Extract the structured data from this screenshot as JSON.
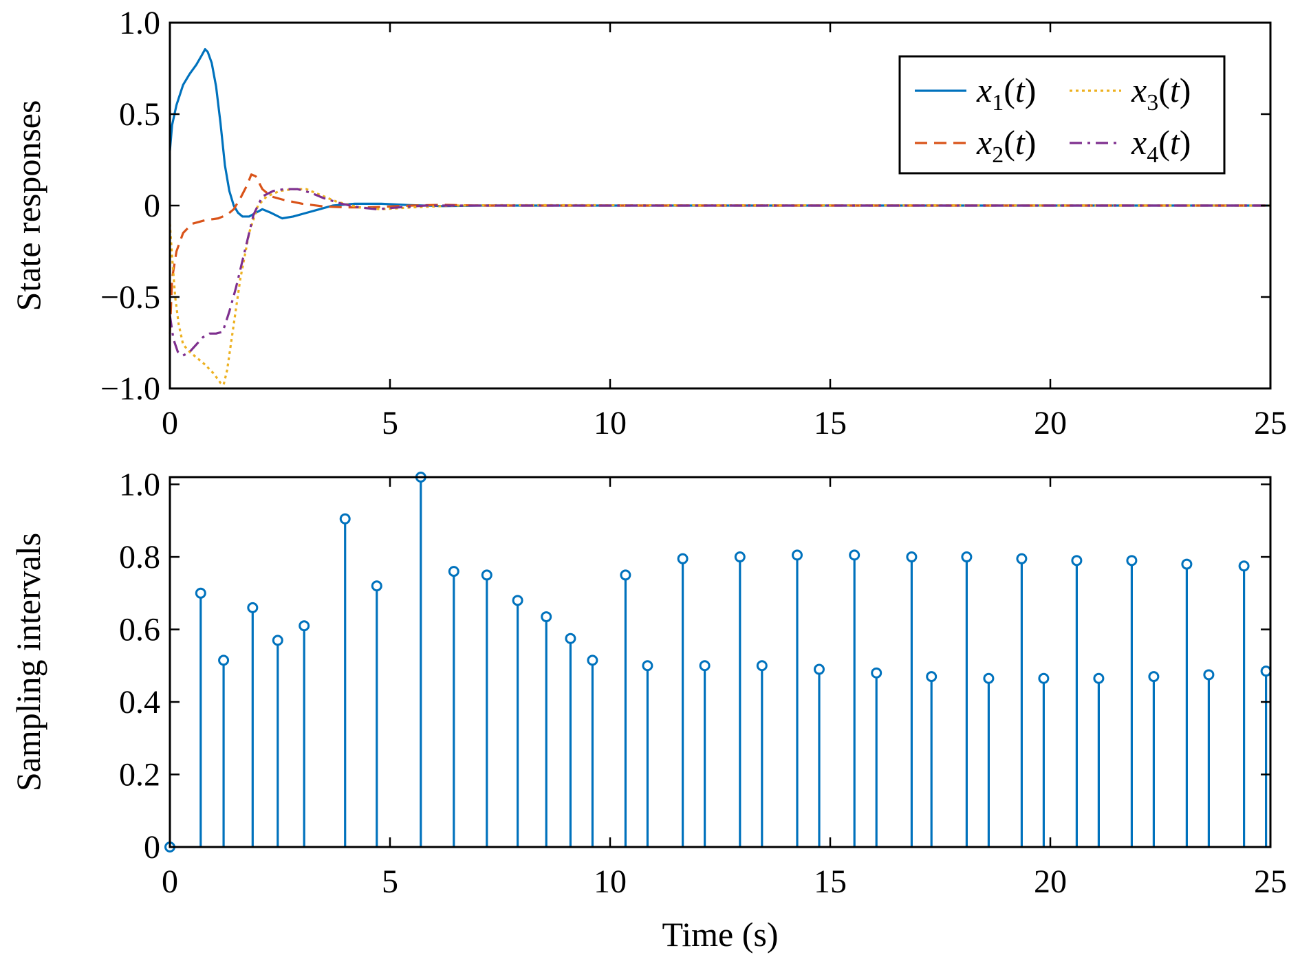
{
  "chart_data": [
    {
      "type": "line",
      "ylabel": "State responses",
      "xlabel": "",
      "xlim": [
        0,
        25
      ],
      "ylim": [
        -1.0,
        1.0
      ],
      "xticks": [
        0,
        5,
        10,
        15,
        20,
        25
      ],
      "yticks": [
        -1.0,
        -0.5,
        0,
        0.5,
        1.0
      ],
      "xtick_labels": [
        "0",
        "5",
        "10",
        "15",
        "20",
        "25"
      ],
      "ytick_labels": [
        "−1.0",
        "−0.5",
        "0",
        "0.5",
        "1.0"
      ],
      "legend_position": "top-right",
      "grid": false,
      "series": [
        {
          "name": "x1(t)",
          "var": "x",
          "sub": "1",
          "arg": "t",
          "color": "#0072BD",
          "dash": "solid",
          "points": [
            [
              0,
              0.3
            ],
            [
              0.05,
              0.44
            ],
            [
              0.15,
              0.55
            ],
            [
              0.3,
              0.66
            ],
            [
              0.45,
              0.72
            ],
            [
              0.6,
              0.77
            ],
            [
              0.72,
              0.82
            ],
            [
              0.8,
              0.855
            ],
            [
              0.86,
              0.84
            ],
            [
              0.95,
              0.78
            ],
            [
              1.05,
              0.65
            ],
            [
              1.15,
              0.45
            ],
            [
              1.25,
              0.22
            ],
            [
              1.35,
              0.08
            ],
            [
              1.45,
              0.0
            ],
            [
              1.55,
              -0.04
            ],
            [
              1.65,
              -0.06
            ],
            [
              1.8,
              -0.06
            ],
            [
              1.95,
              -0.04
            ],
            [
              2.1,
              -0.02
            ],
            [
              2.3,
              -0.04
            ],
            [
              2.55,
              -0.07
            ],
            [
              2.8,
              -0.06
            ],
            [
              3.1,
              -0.04
            ],
            [
              3.4,
              -0.02
            ],
            [
              3.7,
              0.0
            ],
            [
              4.2,
              0.01
            ],
            [
              4.8,
              0.01
            ],
            [
              5.4,
              0.003
            ],
            [
              6.2,
              -0.003
            ],
            [
              7,
              0
            ],
            [
              25,
              0
            ]
          ]
        },
        {
          "name": "x2(t)",
          "var": "x",
          "sub": "2",
          "arg": "t",
          "color": "#D95319",
          "dash": "dashed",
          "points": [
            [
              0,
              -0.7
            ],
            [
              0.05,
              -0.4
            ],
            [
              0.15,
              -0.25
            ],
            [
              0.3,
              -0.15
            ],
            [
              0.5,
              -0.1
            ],
            [
              0.8,
              -0.08
            ],
            [
              1.1,
              -0.07
            ],
            [
              1.3,
              -0.05
            ],
            [
              1.45,
              -0.02
            ],
            [
              1.6,
              0.04
            ],
            [
              1.75,
              0.11
            ],
            [
              1.85,
              0.17
            ],
            [
              1.95,
              0.16
            ],
            [
              2.1,
              0.09
            ],
            [
              2.3,
              0.05
            ],
            [
              2.6,
              0.03
            ],
            [
              3.0,
              0.01
            ],
            [
              3.5,
              -0.005
            ],
            [
              4.0,
              -0.01
            ],
            [
              4.5,
              -0.01
            ],
            [
              5.0,
              -0.005
            ],
            [
              5.5,
              0.0
            ],
            [
              6.2,
              0.004
            ],
            [
              7.0,
              0.0
            ],
            [
              25,
              0
            ]
          ]
        },
        {
          "name": "x3(t)",
          "var": "x",
          "sub": "3",
          "arg": "t",
          "color": "#EDB120",
          "dash": "dotted",
          "points": [
            [
              0,
              -0.1
            ],
            [
              0.05,
              -0.28
            ],
            [
              0.12,
              -0.5
            ],
            [
              0.2,
              -0.65
            ],
            [
              0.3,
              -0.76
            ],
            [
              0.45,
              -0.8
            ],
            [
              0.6,
              -0.83
            ],
            [
              0.8,
              -0.87
            ],
            [
              1.0,
              -0.92
            ],
            [
              1.15,
              -0.97
            ],
            [
              1.22,
              -0.98
            ],
            [
              1.3,
              -0.9
            ],
            [
              1.45,
              -0.65
            ],
            [
              1.6,
              -0.4
            ],
            [
              1.8,
              -0.15
            ],
            [
              2.0,
              0.0
            ],
            [
              2.2,
              0.05
            ],
            [
              2.5,
              0.08
            ],
            [
              2.8,
              0.09
            ],
            [
              3.1,
              0.09
            ],
            [
              3.4,
              0.06
            ],
            [
              3.8,
              0.02
            ],
            [
              4.3,
              -0.01
            ],
            [
              4.8,
              -0.02
            ],
            [
              5.5,
              -0.01
            ],
            [
              6.5,
              0.0
            ],
            [
              7.5,
              0.002
            ],
            [
              25,
              0
            ]
          ]
        },
        {
          "name": "x4(t)",
          "var": "x",
          "sub": "4",
          "arg": "t",
          "color": "#7E2F8E",
          "dash": "dashdot",
          "points": [
            [
              0,
              -0.6
            ],
            [
              0.08,
              -0.73
            ],
            [
              0.18,
              -0.8
            ],
            [
              0.3,
              -0.82
            ],
            [
              0.45,
              -0.8
            ],
            [
              0.6,
              -0.76
            ],
            [
              0.75,
              -0.72
            ],
            [
              0.9,
              -0.7
            ],
            [
              1.05,
              -0.7
            ],
            [
              1.2,
              -0.69
            ],
            [
              1.35,
              -0.58
            ],
            [
              1.5,
              -0.45
            ],
            [
              1.7,
              -0.25
            ],
            [
              1.9,
              -0.05
            ],
            [
              2.1,
              0.05
            ],
            [
              2.35,
              0.08
            ],
            [
              2.6,
              0.09
            ],
            [
              2.9,
              0.09
            ],
            [
              3.2,
              0.07
            ],
            [
              3.5,
              0.04
            ],
            [
              3.9,
              0.01
            ],
            [
              4.3,
              -0.01
            ],
            [
              4.7,
              -0.02
            ],
            [
              5.2,
              -0.01
            ],
            [
              5.8,
              0.0
            ],
            [
              6.5,
              0.0
            ],
            [
              25,
              0
            ]
          ]
        }
      ]
    },
    {
      "type": "stem",
      "ylabel": "Sampling intervals",
      "xlabel": "Time (s)",
      "xlim": [
        0,
        25
      ],
      "ylim": [
        0,
        1.02
      ],
      "xticks": [
        0,
        5,
        10,
        15,
        20,
        25
      ],
      "yticks": [
        0,
        0.2,
        0.4,
        0.6,
        0.8,
        1.0
      ],
      "xtick_labels": [
        "0",
        "5",
        "10",
        "15",
        "20",
        "25"
      ],
      "ytick_labels": [
        "0",
        "0.2",
        "0.4",
        "0.6",
        "0.8",
        "1.0"
      ],
      "grid": false,
      "color": "#0072BD",
      "x": [
        0,
        0.7,
        1.22,
        1.88,
        2.45,
        3.05,
        3.98,
        4.7,
        5.7,
        6.45,
        7.2,
        7.9,
        8.55,
        9.1,
        9.6,
        10.35,
        10.85,
        11.65,
        12.15,
        12.95,
        13.45,
        14.25,
        14.75,
        15.55,
        16.05,
        16.85,
        17.3,
        18.1,
        18.6,
        19.35,
        19.85,
        20.6,
        21.1,
        21.85,
        22.35,
        23.1,
        23.6,
        24.4,
        24.9
      ],
      "values": [
        0,
        0.7,
        0.515,
        0.66,
        0.57,
        0.61,
        0.905,
        0.72,
        1.02,
        0.76,
        0.75,
        0.68,
        0.635,
        0.575,
        0.515,
        0.75,
        0.5,
        0.795,
        0.5,
        0.8,
        0.5,
        0.805,
        0.49,
        0.805,
        0.48,
        0.8,
        0.47,
        0.8,
        0.465,
        0.795,
        0.465,
        0.79,
        0.465,
        0.79,
        0.47,
        0.78,
        0.475,
        0.775,
        0.485
      ]
    }
  ]
}
